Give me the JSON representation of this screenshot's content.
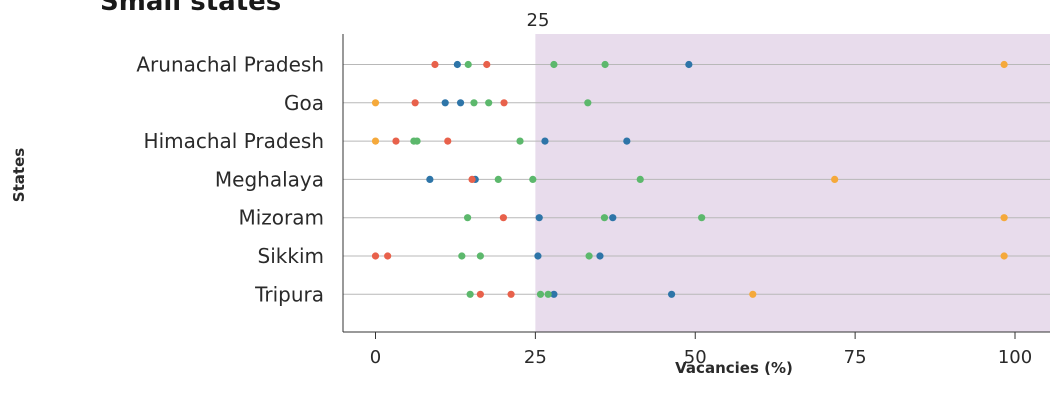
{
  "chart_data": {
    "type": "scatter",
    "title": "Small states",
    "xlabel": "Vacancies (%)",
    "ylabel": "States",
    "xlim": [
      -5,
      104
    ],
    "x_ticks": [
      0,
      25,
      50,
      75,
      100
    ],
    "shaded_region": {
      "from": 25,
      "to": 104,
      "color": "#e8dcec"
    },
    "threshold_label": "25",
    "grid": "horizontal row lines",
    "categories": [
      "Arunachal Pradesh",
      "Goa",
      "Himachal Pradesh",
      "Meghalaya",
      "Mizoram",
      "Sikkim",
      "Tripura"
    ],
    "series": [
      {
        "color": "#2e75a8",
        "values": [
          [
            "Arunachal Pradesh",
            12.8
          ],
          [
            "Arunachal Pradesh",
            49
          ],
          [
            "Goa",
            10.9
          ],
          [
            "Goa",
            13.3
          ],
          [
            "Himachal Pradesh",
            26.5
          ],
          [
            "Himachal Pradesh",
            39.3
          ],
          [
            "Meghalaya",
            8.5
          ],
          [
            "Meghalaya",
            15.6
          ],
          [
            "Mizoram",
            25.6
          ],
          [
            "Mizoram",
            37.1
          ],
          [
            "Sikkim",
            25.4
          ],
          [
            "Sikkim",
            35.1
          ],
          [
            "Tripura",
            27.9
          ],
          [
            "Tripura",
            46.3
          ]
        ]
      },
      {
        "color": "#5cb86c",
        "values": [
          [
            "Arunachal Pradesh",
            14.5
          ],
          [
            "Arunachal Pradesh",
            27.9
          ],
          [
            "Arunachal Pradesh",
            35.9
          ],
          [
            "Goa",
            15.4
          ],
          [
            "Goa",
            17.7
          ],
          [
            "Goa",
            33.2
          ],
          [
            "Himachal Pradesh",
            6.0
          ],
          [
            "Himachal Pradesh",
            6.5
          ],
          [
            "Himachal Pradesh",
            22.6
          ],
          [
            "Meghalaya",
            19.2
          ],
          [
            "Meghalaya",
            24.6
          ],
          [
            "Meghalaya",
            41.4
          ],
          [
            "Mizoram",
            14.4
          ],
          [
            "Mizoram",
            35.8
          ],
          [
            "Mizoram",
            51.0
          ],
          [
            "Sikkim",
            13.5
          ],
          [
            "Sikkim",
            16.4
          ],
          [
            "Sikkim",
            33.4
          ],
          [
            "Tripura",
            14.8
          ],
          [
            "Tripura",
            25.8
          ],
          [
            "Tripura",
            27.0
          ]
        ]
      },
      {
        "color": "#e8614b",
        "values": [
          [
            "Arunachal Pradesh",
            9.3
          ],
          [
            "Arunachal Pradesh",
            17.4
          ],
          [
            "Goa",
            6.2
          ],
          [
            "Goa",
            20.1
          ],
          [
            "Himachal Pradesh",
            3.2
          ],
          [
            "Himachal Pradesh",
            11.3
          ],
          [
            "Meghalaya",
            15.1
          ],
          [
            "Mizoram",
            20.0
          ],
          [
            "Sikkim",
            0.0
          ],
          [
            "Sikkim",
            1.9
          ],
          [
            "Tripura",
            16.4
          ],
          [
            "Tripura",
            21.2
          ]
        ]
      },
      {
        "color": "#f5a93b",
        "values": [
          [
            "Arunachal Pradesh",
            98.3
          ],
          [
            "Goa",
            0.0
          ],
          [
            "Himachal Pradesh",
            0.0
          ],
          [
            "Meghalaya",
            71.8
          ],
          [
            "Mizoram",
            98.3
          ],
          [
            "Sikkim",
            98.3
          ],
          [
            "Tripura",
            59.0
          ]
        ]
      }
    ]
  }
}
